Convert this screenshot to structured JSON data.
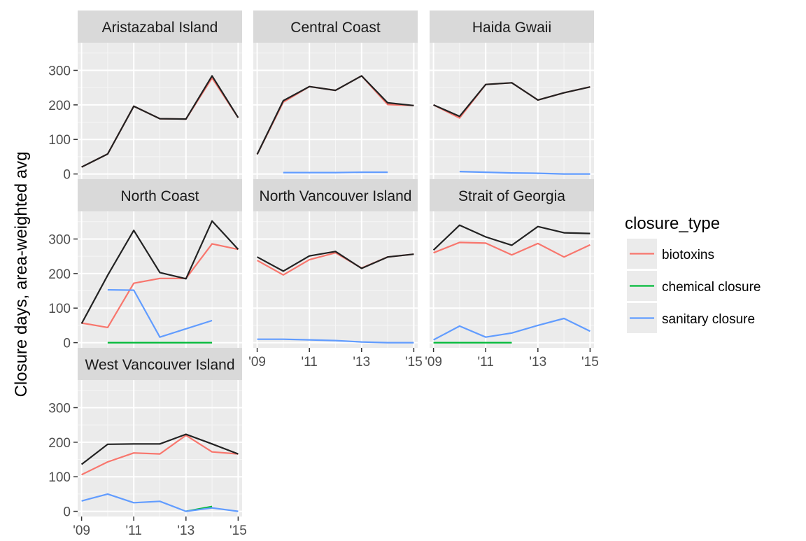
{
  "chart_data": {
    "type": "line",
    "ylabel": "Closure days, area-weighted avg",
    "xlabel": "",
    "x": [
      2009,
      2010,
      2011,
      2012,
      2013,
      2014,
      2015
    ],
    "x_tick_labels": [
      "'09",
      "'11",
      "'13",
      "'15"
    ],
    "y_ticks": [
      0,
      100,
      200,
      300
    ],
    "ylim": [
      -15,
      380
    ],
    "xlim": [
      2008.85,
      2015.15
    ],
    "grid": true,
    "legend": {
      "title": "closure_type",
      "placement": "right",
      "entries": [
        {
          "label": "biotoxins",
          "color": "#F8766D"
        },
        {
          "label": "chemical closure",
          "color": "#00BA38"
        },
        {
          "label": "sanitary closure",
          "color": "#619CFF"
        }
      ]
    },
    "total_color": "#222222",
    "panels": [
      {
        "title": "Aristazabal Island",
        "total": [
          20,
          58,
          196,
          160,
          159,
          284,
          163
        ],
        "series": [
          {
            "type": "biotoxins",
            "values": [
              20,
              58,
              196,
              160,
              159,
              278,
              163
            ]
          },
          {
            "type": "chemical closure",
            "values": [
              null,
              null,
              null,
              null,
              null,
              null,
              null
            ]
          },
          {
            "type": "sanitary closure",
            "values": [
              null,
              null,
              null,
              null,
              null,
              null,
              null
            ]
          }
        ]
      },
      {
        "title": "Central Coast",
        "total": [
          57,
          212,
          253,
          242,
          284,
          206,
          198
        ],
        "series": [
          {
            "type": "biotoxins",
            "values": [
              57,
              208,
              253,
              242,
              284,
              201,
              198
            ]
          },
          {
            "type": "chemical closure",
            "values": [
              null,
              null,
              null,
              null,
              null,
              null,
              null
            ]
          },
          {
            "type": "sanitary closure",
            "values": [
              null,
              4,
              4,
              4,
              5,
              5,
              null
            ]
          }
        ]
      },
      {
        "title": "Haida Gwaii",
        "total": [
          200,
          167,
          259,
          264,
          214,
          235,
          252
        ],
        "series": [
          {
            "type": "biotoxins",
            "values": [
              200,
              162,
              259,
              264,
              214,
              235,
              252
            ]
          },
          {
            "type": "chemical closure",
            "values": [
              null,
              null,
              null,
              null,
              null,
              null,
              null
            ]
          },
          {
            "type": "sanitary closure",
            "values": [
              null,
              7,
              5,
              3,
              2,
              0,
              0
            ]
          }
        ]
      },
      {
        "title": "North Coast",
        "total": [
          55,
          195,
          325,
          203,
          185,
          352,
          270
        ],
        "series": [
          {
            "type": "biotoxins",
            "values": [
              57,
              44,
              172,
              186,
              186,
              286,
              270
            ]
          },
          {
            "type": "chemical closure",
            "values": [
              null,
              0,
              0,
              0,
              0,
              0,
              null
            ]
          },
          {
            "type": "sanitary closure",
            "values": [
              null,
              153,
              152,
              16,
              40,
              64,
              null
            ]
          }
        ]
      },
      {
        "title": "North Vancouver Island",
        "total": [
          248,
          207,
          251,
          264,
          215,
          248,
          256
        ],
        "series": [
          {
            "type": "biotoxins",
            "values": [
              238,
              196,
              240,
              260,
              216,
              248,
              256
            ]
          },
          {
            "type": "chemical closure",
            "values": [
              null,
              null,
              null,
              null,
              null,
              null,
              null
            ]
          },
          {
            "type": "sanitary closure",
            "values": [
              10,
              10,
              8,
              6,
              2,
              0,
              0
            ]
          }
        ]
      },
      {
        "title": "Strait of Georgia",
        "total": [
          268,
          340,
          306,
          282,
          336,
          318,
          316
        ],
        "series": [
          {
            "type": "biotoxins",
            "values": [
              260,
              290,
              288,
              254,
              287,
              248,
              283
            ]
          },
          {
            "type": "chemical closure",
            "values": [
              0,
              0,
              0,
              0,
              null,
              null,
              null
            ]
          },
          {
            "type": "sanitary closure",
            "values": [
              8,
              48,
              16,
              28,
              50,
              70,
              33
            ]
          }
        ]
      },
      {
        "title": "West Vancouver Island",
        "total": [
          136,
          194,
          195,
          195,
          223,
          195,
          166
        ],
        "series": [
          {
            "type": "biotoxins",
            "values": [
              106,
              143,
              169,
              166,
              220,
              172,
              166
            ]
          },
          {
            "type": "chemical closure",
            "values": [
              null,
              null,
              null,
              null,
              0,
              14,
              null
            ]
          },
          {
            "type": "sanitary closure",
            "values": [
              30,
              50,
              25,
              29,
              0,
              10,
              0
            ]
          }
        ]
      }
    ]
  }
}
